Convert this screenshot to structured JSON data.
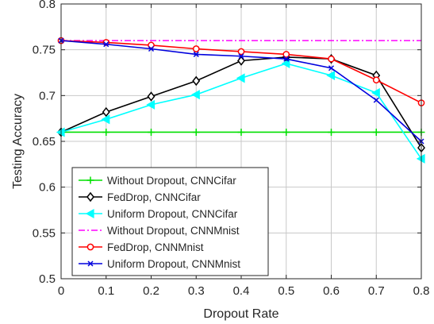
{
  "chart_data": {
    "type": "line",
    "title": "",
    "xlabel": "Dropout Rate",
    "ylabel": "Testing Accuracy",
    "xlim": [
      0,
      0.8
    ],
    "ylim": [
      0.5,
      0.8
    ],
    "grid": true,
    "legend_position": "lower-left",
    "x": [
      0,
      0.1,
      0.2,
      0.3,
      0.4,
      0.5,
      0.6,
      0.7,
      0.8
    ],
    "x_ticks": [
      "0",
      "0.1",
      "0.2",
      "0.3",
      "0.4",
      "0.5",
      "0.6",
      "0.7",
      "0.8"
    ],
    "y_ticks": [
      "0.5",
      "0.55",
      "0.6",
      "0.65",
      "0.7",
      "0.75",
      "0.8"
    ],
    "series": [
      {
        "name": "Without Dropout, CNNCifar",
        "color": "#00e000",
        "marker": "plus",
        "dash": "solid",
        "values": [
          0.66,
          0.66,
          0.66,
          0.66,
          0.66,
          0.66,
          0.66,
          0.66,
          0.66
        ]
      },
      {
        "name": "FedDrop, CNNCifar",
        "color": "#000000",
        "marker": "diamond",
        "dash": "solid",
        "values": [
          0.66,
          0.682,
          0.699,
          0.716,
          0.738,
          0.742,
          0.74,
          0.722,
          0.643
        ]
      },
      {
        "name": "Uniform Dropout, CNNCifar",
        "color": "#00ffff",
        "marker": "triangle-left",
        "dash": "solid",
        "values": [
          0.66,
          0.674,
          0.69,
          0.701,
          0.719,
          0.735,
          0.722,
          0.703,
          0.631
        ]
      },
      {
        "name": "Without Dropout, CNNMnist",
        "color": "#ff00ff",
        "marker": "none",
        "dash": "dashdot",
        "values": [
          0.76,
          0.76,
          0.76,
          0.76,
          0.76,
          0.76,
          0.76,
          0.76,
          0.76
        ]
      },
      {
        "name": "FedDrop, CNNMnist",
        "color": "#ff0000",
        "marker": "circle",
        "dash": "solid",
        "values": [
          0.76,
          0.758,
          0.755,
          0.751,
          0.748,
          0.745,
          0.74,
          0.717,
          0.692
        ]
      },
      {
        "name": "Uniform Dropout, CNNMnist",
        "color": "#0000dd",
        "marker": "x",
        "dash": "solid",
        "values": [
          0.76,
          0.756,
          0.751,
          0.745,
          0.743,
          0.74,
          0.73,
          0.695,
          0.65
        ]
      }
    ]
  }
}
